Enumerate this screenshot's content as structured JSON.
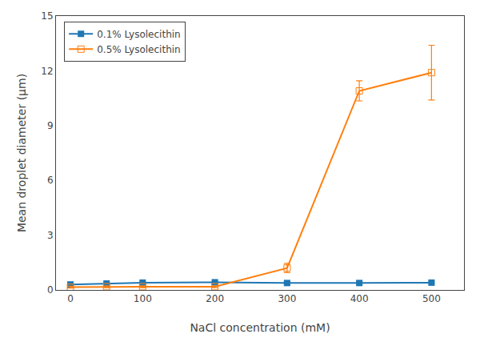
{
  "chart_data": {
    "type": "line",
    "xlabel": "NaCl concentration (mM)",
    "ylabel": "Mean droplet diameter (μm)",
    "x": [
      0,
      50,
      100,
      200,
      300,
      400,
      500
    ],
    "series": [
      {
        "name": "0.1% Lysolecithin",
        "values": [
          0.3,
          0.35,
          0.4,
          0.42,
          0.38,
          0.38,
          0.4
        ],
        "errors": [
          0.05,
          0.05,
          0.05,
          0.05,
          0.08,
          0.05,
          0.05
        ],
        "marker": "square"
      },
      {
        "name": "0.5% Lysolecithin",
        "values": [
          0.15,
          0.18,
          0.18,
          0.18,
          1.2,
          10.9,
          11.9
        ],
        "errors": [
          0.05,
          0.05,
          0.05,
          0.05,
          0.25,
          0.55,
          1.5
        ],
        "marker": "square-open"
      }
    ],
    "xlim": [
      -20,
      545
    ],
    "xticks": [
      0,
      100,
      200,
      300,
      400,
      500
    ],
    "ylim": [
      0,
      15
    ],
    "yticks": [
      0,
      3,
      6,
      9,
      12,
      15
    ],
    "grid": false,
    "legend": "upper left"
  }
}
